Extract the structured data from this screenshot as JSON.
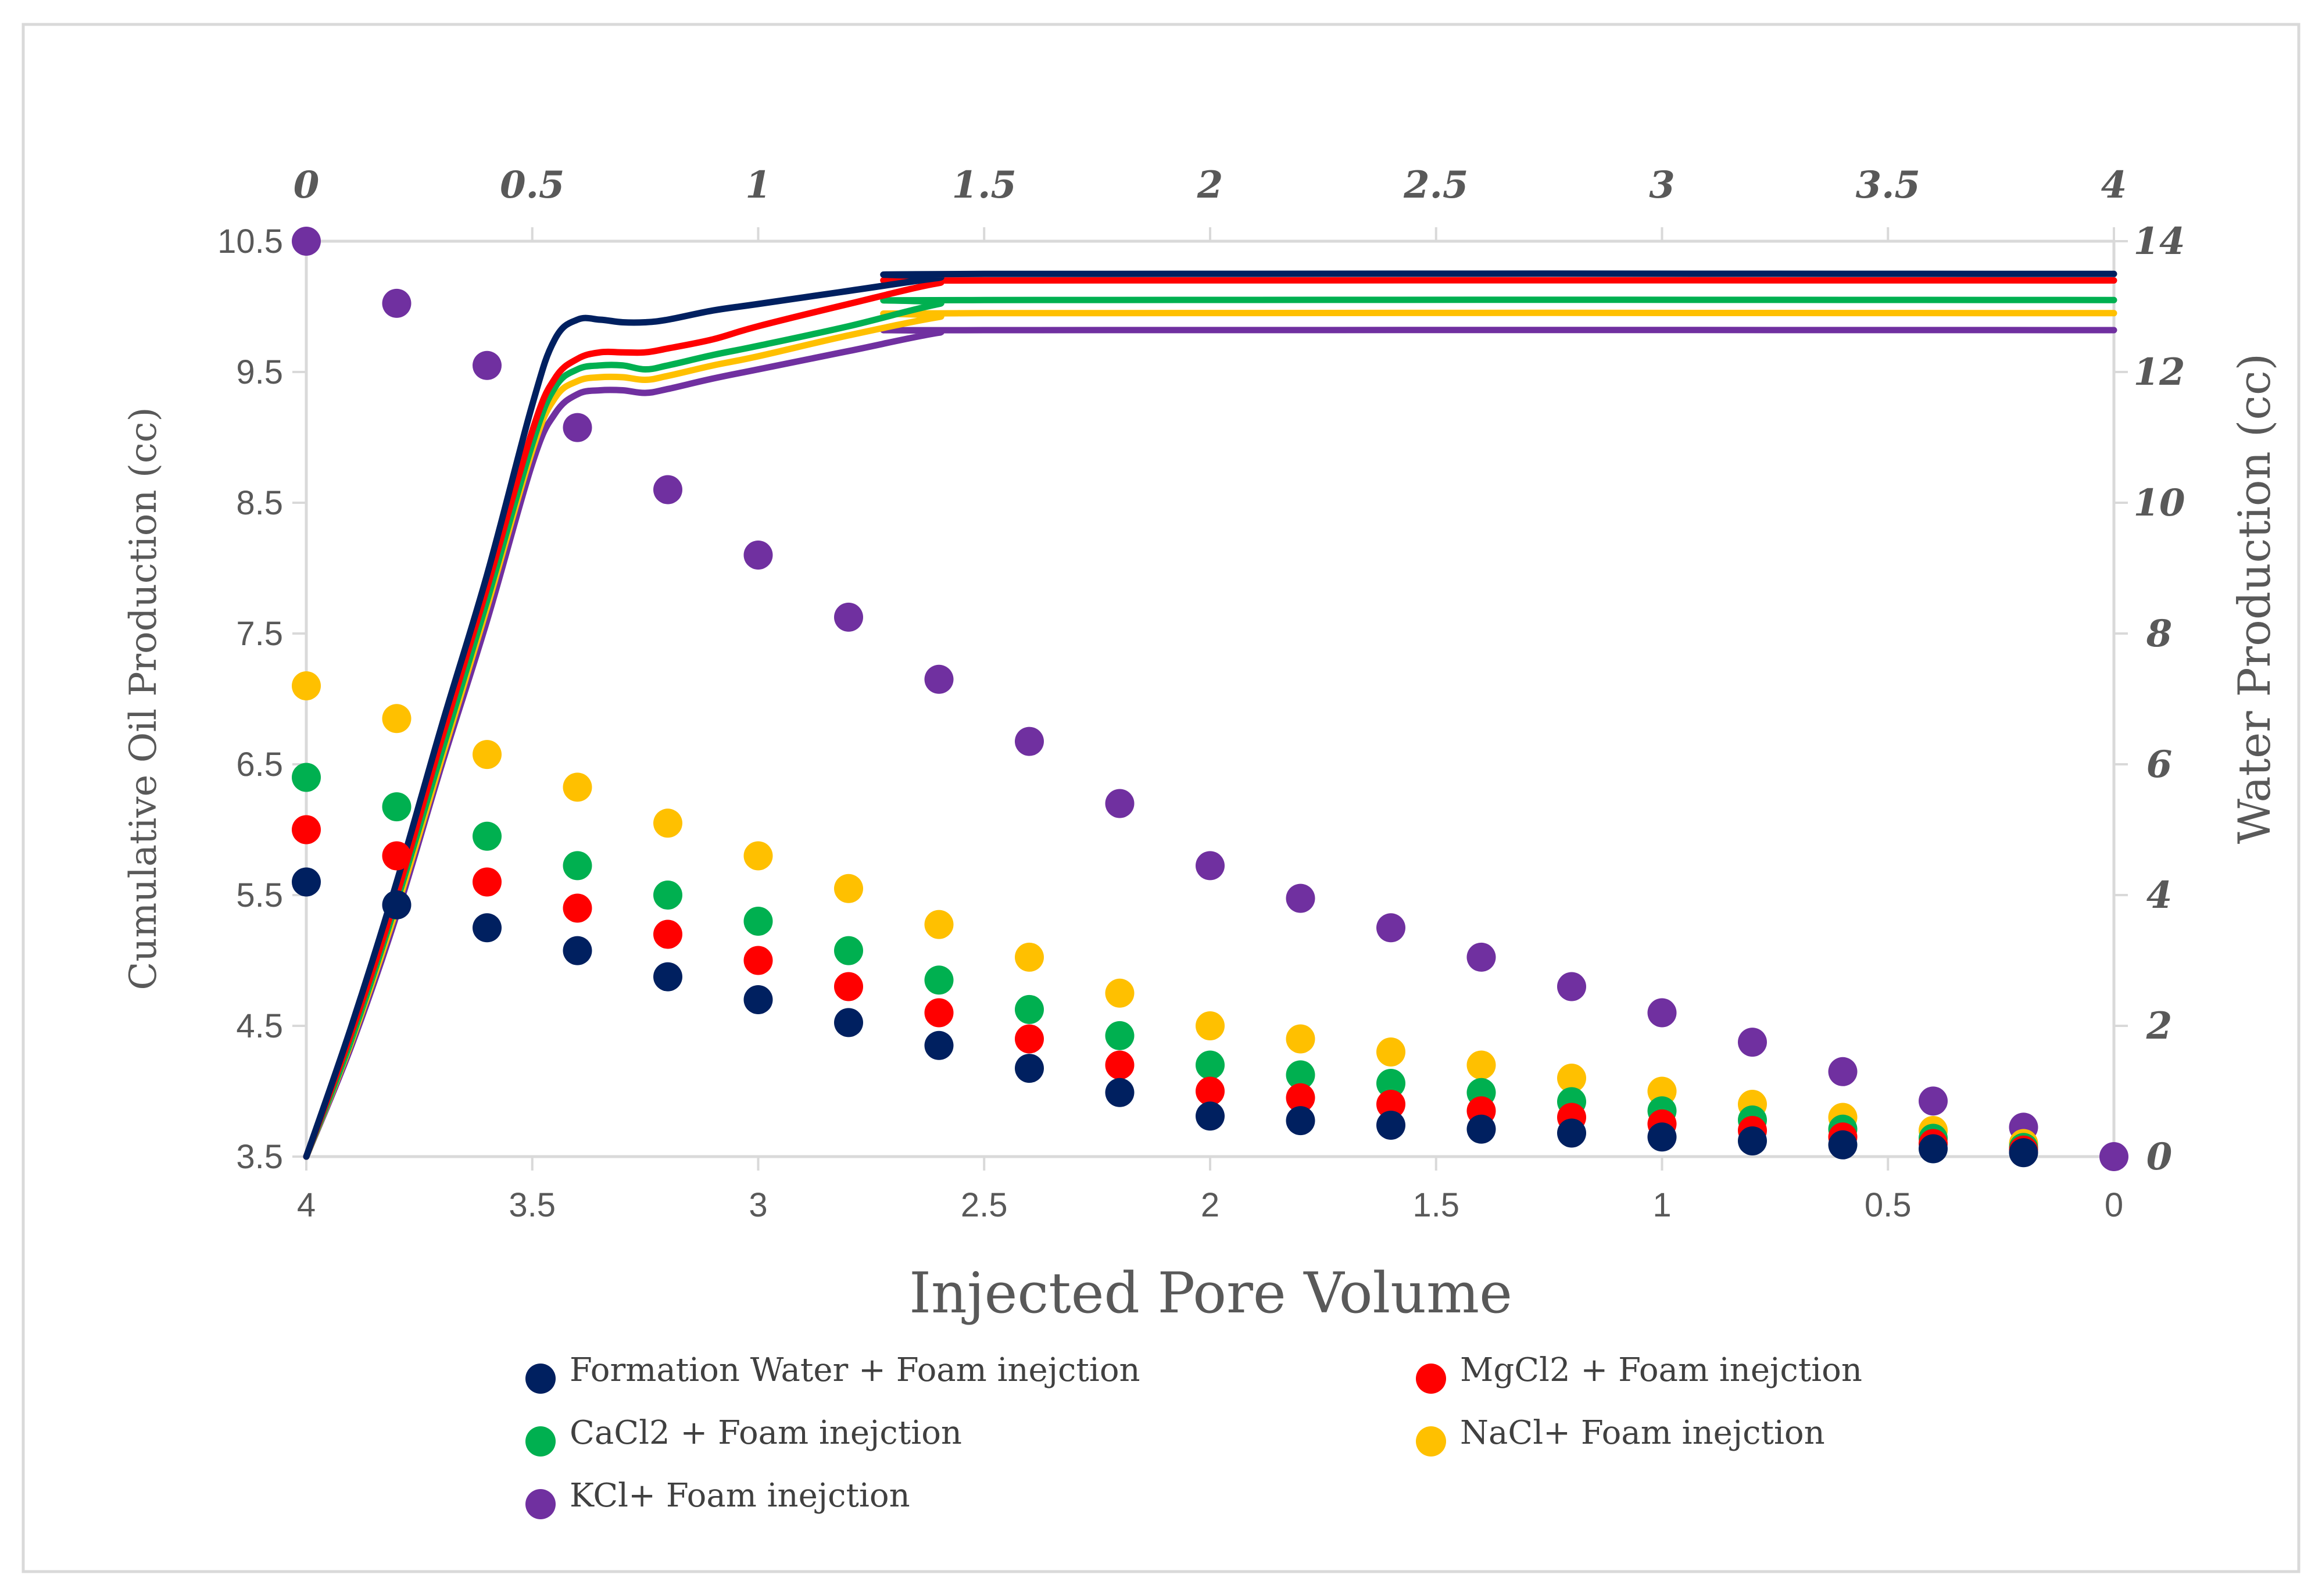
{
  "chart_data": {
    "type": "line+scatter",
    "xlabel": "Injected Pore Volume",
    "ylabel_left": "Cumulative Oil Production (cc)",
    "ylabel_right": "Water Production  (cc)",
    "x_top_ticks": [
      "0",
      "0.5",
      "1",
      "1.5",
      "2",
      "2.5",
      "3",
      "3.5",
      "4"
    ],
    "x_bottom_ticks": [
      "4",
      "3.5",
      "3",
      "2.5",
      "2",
      "1.5",
      "1",
      "0.5",
      "0"
    ],
    "y_left_ticks": [
      "10.5",
      "9.5",
      "8.5",
      "7.5",
      "6.5",
      "5.5",
      "4.5",
      "3.5"
    ],
    "y_right_ticks": [
      "14",
      "12",
      "10",
      "8",
      "6",
      "4",
      "2",
      "0"
    ],
    "xlim_top": [
      0,
      4
    ],
    "xlim_bottom": [
      4,
      0
    ],
    "ylim_left": [
      3.5,
      10.5
    ],
    "ylim_right": [
      0,
      14
    ],
    "legend": [
      {
        "label": "Formation Water + Foam inejction",
        "color": "#002060"
      },
      {
        "label": "MgCl2 + Foam inejction",
        "color": "#ff0000"
      },
      {
        "label": "CaCl2 + Foam inejction",
        "color": "#00b050"
      },
      {
        "label": "NaCl+ Foam inejction",
        "color": "#ffc000"
      },
      {
        "label": "KCl+ Foam inejction",
        "color": "#7030a0"
      }
    ],
    "oil_lines": {
      "x_axis": "top",
      "y_axis": "left",
      "series": [
        {
          "name": "Formation Water + Foam inejction",
          "color": "#002060",
          "x": [
            0,
            0.1,
            0.2,
            0.3,
            0.4,
            0.5,
            0.55,
            0.6,
            0.65,
            0.7,
            0.75,
            0.8,
            0.9,
            1.0,
            1.2,
            1.4,
            1.5,
            4.0
          ],
          "y": [
            3.5,
            4.5,
            5.6,
            6.8,
            7.95,
            9.25,
            9.75,
            9.9,
            9.9,
            9.88,
            9.88,
            9.9,
            9.97,
            10.02,
            10.12,
            10.22,
            10.25,
            10.25
          ]
        },
        {
          "name": "MgCl2 + Foam inejction",
          "color": "#ff0000",
          "x": [
            0,
            0.1,
            0.2,
            0.3,
            0.4,
            0.5,
            0.55,
            0.6,
            0.65,
            0.7,
            0.75,
            0.8,
            0.9,
            1.0,
            1.2,
            1.4,
            1.5,
            4.0
          ],
          "y": [
            3.5,
            4.45,
            5.5,
            6.7,
            7.85,
            9.05,
            9.45,
            9.6,
            9.65,
            9.65,
            9.65,
            9.68,
            9.75,
            9.85,
            10.02,
            10.18,
            10.2,
            10.2
          ]
        },
        {
          "name": "CaCl2 + Foam inejction",
          "color": "#00b050",
          "x": [
            0,
            0.1,
            0.2,
            0.3,
            0.4,
            0.5,
            0.55,
            0.6,
            0.65,
            0.7,
            0.75,
            0.8,
            0.9,
            1.0,
            1.2,
            1.4,
            1.5,
            4.0
          ],
          "y": [
            3.5,
            4.4,
            5.45,
            6.6,
            7.75,
            8.95,
            9.38,
            9.52,
            9.55,
            9.55,
            9.52,
            9.55,
            9.63,
            9.7,
            9.85,
            10.02,
            10.05,
            10.05
          ]
        },
        {
          "name": "NaCl+ Foam inejction",
          "color": "#ffc000",
          "x": [
            0,
            0.1,
            0.2,
            0.3,
            0.4,
            0.5,
            0.55,
            0.6,
            0.65,
            0.7,
            0.75,
            0.8,
            0.9,
            1.0,
            1.2,
            1.4,
            1.5,
            4.0
          ],
          "y": [
            3.5,
            4.38,
            5.4,
            6.55,
            7.7,
            8.9,
            9.3,
            9.43,
            9.46,
            9.46,
            9.44,
            9.47,
            9.55,
            9.62,
            9.78,
            9.92,
            9.95,
            9.95
          ]
        },
        {
          "name": "KCl+ Foam inejction",
          "color": "#7030a0",
          "x": [
            0,
            0.1,
            0.2,
            0.3,
            0.4,
            0.5,
            0.55,
            0.6,
            0.65,
            0.7,
            0.75,
            0.8,
            0.9,
            1.0,
            1.2,
            1.4,
            1.5,
            4.0
          ],
          "y": [
            3.5,
            4.35,
            5.35,
            6.5,
            7.6,
            8.8,
            9.18,
            9.33,
            9.36,
            9.36,
            9.34,
            9.37,
            9.45,
            9.52,
            9.66,
            9.8,
            9.82,
            9.82
          ]
        }
      ]
    },
    "water_points": {
      "x_axis": "bottom",
      "y_axis": "right",
      "series": [
        {
          "name": "Formation Water + Foam inejction",
          "color": "#002060",
          "x": [
            4,
            3.8,
            3.6,
            3.4,
            3.2,
            3.0,
            2.8,
            2.6,
            2.4,
            2.2,
            2.0,
            1.8,
            1.6,
            1.4,
            1.2,
            1.0,
            0.8,
            0.6,
            0.4,
            0.2
          ],
          "y": [
            4.2,
            3.85,
            3.5,
            3.15,
            2.75,
            2.4,
            2.05,
            1.7,
            1.35,
            0.98,
            0.62,
            0.55,
            0.48,
            0.42,
            0.36,
            0.3,
            0.24,
            0.18,
            0.12,
            0.06
          ]
        },
        {
          "name": "MgCl2 + Foam inejction",
          "color": "#ff0000",
          "x": [
            4,
            3.8,
            3.6,
            3.4,
            3.2,
            3.0,
            2.8,
            2.6,
            2.4,
            2.2,
            2.0,
            1.8,
            1.6,
            1.4,
            1.2,
            1.0,
            0.8,
            0.6,
            0.4,
            0.2
          ],
          "y": [
            5.0,
            4.6,
            4.2,
            3.8,
            3.4,
            3.0,
            2.6,
            2.2,
            1.8,
            1.4,
            1.0,
            0.9,
            0.8,
            0.7,
            0.6,
            0.5,
            0.4,
            0.3,
            0.2,
            0.1
          ]
        },
        {
          "name": "CaCl2 + Foam inejction",
          "color": "#00b050",
          "x": [
            4,
            3.8,
            3.6,
            3.4,
            3.2,
            3.0,
            2.8,
            2.6,
            2.4,
            2.2,
            2.0,
            1.8,
            1.6,
            1.4,
            1.2,
            1.0,
            0.8,
            0.6,
            0.4,
            0.2
          ],
          "y": [
            5.8,
            5.35,
            4.9,
            4.45,
            4.0,
            3.6,
            3.15,
            2.7,
            2.25,
            1.85,
            1.4,
            1.25,
            1.12,
            0.98,
            0.84,
            0.7,
            0.56,
            0.42,
            0.28,
            0.14
          ]
        },
        {
          "name": "NaCl+ Foam inejction",
          "color": "#ffc000",
          "x": [
            4,
            3.8,
            3.6,
            3.4,
            3.2,
            3.0,
            2.8,
            2.6,
            2.4,
            2.2,
            2.0,
            1.8,
            1.6,
            1.4,
            1.2,
            1.0,
            0.8,
            0.6,
            0.4,
            0.2
          ],
          "y": [
            7.2,
            6.7,
            6.15,
            5.65,
            5.1,
            4.6,
            4.1,
            3.55,
            3.05,
            2.5,
            2.0,
            1.8,
            1.6,
            1.4,
            1.2,
            1.0,
            0.8,
            0.6,
            0.4,
            0.2
          ]
        },
        {
          "name": "KCl+ Foam inejction",
          "color": "#7030a0",
          "x": [
            4,
            3.8,
            3.6,
            3.4,
            3.2,
            3.0,
            2.8,
            2.6,
            2.4,
            2.2,
            2.0,
            1.8,
            1.6,
            1.4,
            1.2,
            1.0,
            0.8,
            0.6,
            0.4,
            0.2,
            0
          ],
          "y": [
            14.0,
            13.05,
            12.1,
            11.15,
            10.2,
            9.2,
            8.25,
            7.3,
            6.35,
            5.4,
            4.45,
            3.95,
            3.5,
            3.05,
            2.6,
            2.2,
            1.75,
            1.3,
            0.85,
            0.45,
            0
          ]
        }
      ]
    }
  }
}
